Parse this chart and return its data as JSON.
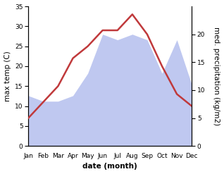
{
  "months": [
    "Jan",
    "Feb",
    "Mar",
    "Apr",
    "May",
    "Jun",
    "Jul",
    "Aug",
    "Sep",
    "Oct",
    "Nov",
    "Dec"
  ],
  "temperature": [
    7,
    11,
    15,
    22,
    25,
    29,
    29,
    33,
    28,
    20,
    13,
    10
  ],
  "precipitation": [
    9,
    8,
    8,
    9,
    13,
    20,
    19,
    20,
    19,
    13,
    19,
    11
  ],
  "temp_color": "#c0393b",
  "precip_fill_color": "#bfc8f0",
  "temp_ylim": [
    0,
    35
  ],
  "precip_ylim": [
    0,
    25
  ],
  "right_yticks": [
    0,
    5,
    10,
    15,
    20
  ],
  "left_yticks": [
    0,
    5,
    10,
    15,
    20,
    25,
    30,
    35
  ],
  "xlabel": "date (month)",
  "ylabel_left": "max temp (C)",
  "ylabel_right": "med. precipitation (kg/m2)",
  "bg_color": "#ffffff",
  "label_fontsize": 7.5,
  "tick_fontsize": 6.5,
  "line_width": 1.8
}
